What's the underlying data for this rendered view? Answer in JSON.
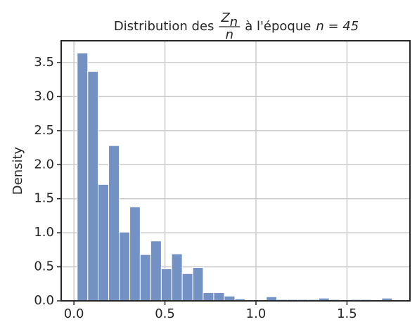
{
  "chart_data": {
    "type": "histogram",
    "title": {
      "prefix": "Distribution des",
      "numerator": "Z",
      "numerator_subscript": "n",
      "denominator": "n",
      "suffix": "à l'époque",
      "math": "n = 45"
    },
    "ylabel": "Density",
    "bins": [
      0.018,
      0.076,
      0.133,
      0.191,
      0.249,
      0.307,
      0.364,
      0.422,
      0.48,
      0.537,
      0.595,
      0.653,
      0.71,
      0.768,
      0.826,
      0.884,
      0.941,
      0.999,
      1.057,
      1.114,
      1.172,
      1.23,
      1.287,
      1.345,
      1.403,
      1.461,
      1.518,
      1.576,
      1.634,
      1.691,
      1.749
    ],
    "values": [
      3.64,
      3.37,
      1.71,
      2.28,
      1.01,
      1.38,
      0.68,
      0.88,
      0.47,
      0.69,
      0.4,
      0.49,
      0.12,
      0.12,
      0.07,
      0.03,
      0,
      0,
      0.06,
      0.02,
      0.02,
      0.02,
      0.02,
      0.04,
      0.02,
      0,
      0.02,
      0.02,
      0,
      0.04
    ],
    "color": "#7491c4",
    "xlim": [
      -0.07,
      1.846
    ],
    "ylim": [
      0,
      3.82
    ],
    "xticks": [
      {
        "value": 0,
        "label": "0.0"
      },
      0.5,
      {
        "value": 1,
        "label": "1.0"
      },
      1.5
    ],
    "yticks": [
      {
        "value": 0,
        "label": "0.0"
      },
      0.5,
      {
        "value": 1,
        "label": "1.0"
      },
      1.5,
      {
        "value": 2,
        "label": "2.0"
      },
      2.5,
      {
        "value": 3,
        "label": "3.0"
      },
      3.5
    ],
    "grid": true
  }
}
